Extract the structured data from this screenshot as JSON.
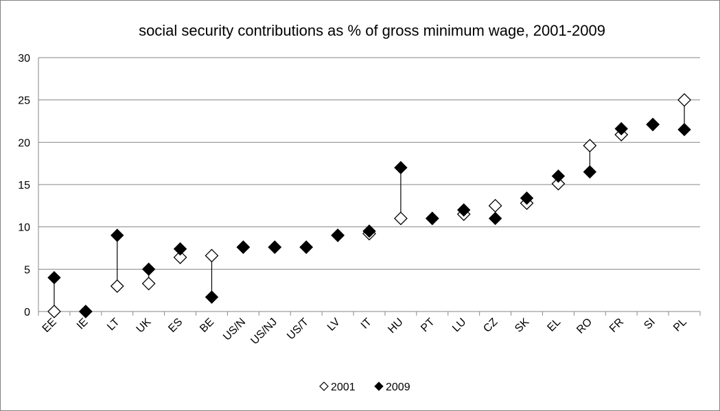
{
  "chart_data": {
    "type": "scatter",
    "title": "social security contributions as % of gross minimum wage, 2001-2009",
    "xlabel": "",
    "ylabel": "",
    "ylim": [
      0,
      30
    ],
    "yticks": [
      "0",
      "5",
      "10",
      "15",
      "20",
      "25",
      "30"
    ],
    "grid": "horizontal",
    "legend_position": "bottom",
    "categories": [
      "EE",
      "IE",
      "LT",
      "UK",
      "ES",
      "BE",
      "US/N",
      "US/NJ",
      "US/T",
      "LV",
      "IT",
      "HU",
      "PT",
      "LU",
      "CZ",
      "SK",
      "EL",
      "RO",
      "FR",
      "SI",
      "PL"
    ],
    "series": [
      {
        "name": "2001",
        "marker": "hollow-diamond",
        "color": "#000000",
        "values": [
          0,
          0,
          3,
          3.3,
          6.4,
          6.6,
          7.6,
          7.6,
          7.6,
          9,
          9.2,
          11,
          11,
          11.5,
          12.5,
          12.8,
          15.1,
          19.6,
          20.9,
          22.1,
          25
        ]
      },
      {
        "name": "2009",
        "marker": "filled-diamond",
        "color": "#000000",
        "values": [
          4,
          0,
          9,
          5,
          7.4,
          1.7,
          7.6,
          7.6,
          7.6,
          9,
          9.5,
          17,
          11,
          12,
          11,
          13.4,
          16,
          16.5,
          21.6,
          22.1,
          21.5
        ]
      }
    ]
  }
}
